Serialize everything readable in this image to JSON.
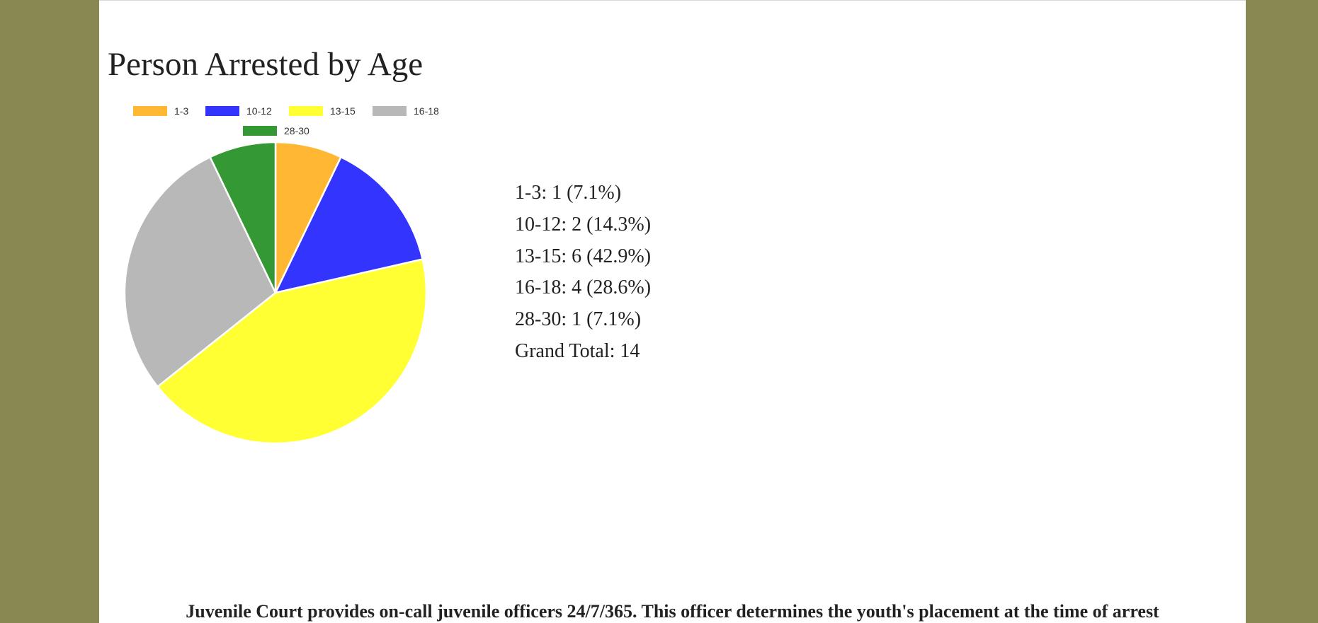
{
  "page": {
    "title": "Person Arrested by Age",
    "footer_note": "Juvenile Court provides on-call juvenile officers 24/7/365. This officer determines the youth's placement at the time of arrest"
  },
  "colors": {
    "side_background": "#888853",
    "page_background": "#ffffff"
  },
  "chart_data": {
    "type": "pie",
    "title": "",
    "legend": "top",
    "categories": [
      "1-3",
      "10-12",
      "13-15",
      "16-18",
      "28-30"
    ],
    "values": [
      1,
      2,
      6,
      4,
      1
    ],
    "colors": [
      "#ffb734",
      "#3434ff",
      "#ffff34",
      "#b8b8b8",
      "#349934"
    ]
  },
  "summary": {
    "lines": [
      "1-3: 1 (7.1%)",
      "10-12: 2 (14.3%)",
      "13-15: 6 (42.9%)",
      "16-18: 4 (28.6%)",
      "28-30: 1 (7.1%)"
    ],
    "grand_total": "Grand Total: 14"
  }
}
